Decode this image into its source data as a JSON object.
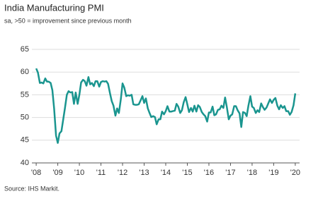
{
  "chart_data": {
    "type": "line",
    "title": "India Manufacturing PMI",
    "subtitle": "sa, >50 = improvement since previous month",
    "source": "Source: IHS Markit.",
    "x": [
      2008.0,
      2008.08,
      2008.17,
      2008.25,
      2008.33,
      2008.42,
      2008.5,
      2008.58,
      2008.67,
      2008.75,
      2008.83,
      2008.92,
      2009.0,
      2009.08,
      2009.17,
      2009.25,
      2009.33,
      2009.42,
      2009.5,
      2009.58,
      2009.67,
      2009.75,
      2009.83,
      2009.92,
      2010.0,
      2010.08,
      2010.17,
      2010.25,
      2010.33,
      2010.42,
      2010.5,
      2010.58,
      2010.67,
      2010.75,
      2010.83,
      2010.92,
      2011.0,
      2011.08,
      2011.17,
      2011.25,
      2011.33,
      2011.42,
      2011.5,
      2011.58,
      2011.67,
      2011.75,
      2011.83,
      2011.92,
      2012.0,
      2012.08,
      2012.17,
      2012.25,
      2012.33,
      2012.42,
      2012.5,
      2012.58,
      2012.67,
      2012.75,
      2012.83,
      2012.92,
      2013.0,
      2013.08,
      2013.17,
      2013.25,
      2013.33,
      2013.42,
      2013.5,
      2013.58,
      2013.67,
      2013.75,
      2013.83,
      2013.92,
      2014.0,
      2014.08,
      2014.17,
      2014.25,
      2014.33,
      2014.42,
      2014.5,
      2014.58,
      2014.67,
      2014.75,
      2014.83,
      2014.92,
      2015.0,
      2015.08,
      2015.17,
      2015.25,
      2015.33,
      2015.42,
      2015.5,
      2015.58,
      2015.67,
      2015.75,
      2015.83,
      2015.92,
      2016.0,
      2016.08,
      2016.17,
      2016.25,
      2016.33,
      2016.42,
      2016.5,
      2016.58,
      2016.67,
      2016.75,
      2016.83,
      2016.92,
      2017.0,
      2017.08,
      2017.17,
      2017.25,
      2017.33,
      2017.42,
      2017.5,
      2017.58,
      2017.67,
      2017.75,
      2017.83,
      2017.92,
      2018.0,
      2018.08,
      2018.17,
      2018.25,
      2018.33,
      2018.42,
      2018.5,
      2018.58,
      2018.67,
      2018.75,
      2018.83,
      2018.92,
      2019.0,
      2019.08,
      2019.17,
      2019.25,
      2019.33,
      2019.42,
      2019.5,
      2019.58,
      2019.67,
      2019.75,
      2019.83,
      2019.92,
      2020.0
    ],
    "series": [
      {
        "color": "#1a958f",
        "values": [
          60.8,
          59.9,
          57.6,
          57.7,
          57.5,
          58.6,
          57.9,
          57.9,
          57.6,
          56.0,
          52.0,
          46.0,
          44.4,
          46.5,
          47.0,
          49.5,
          52.0,
          55.0,
          55.8,
          55.5,
          55.6,
          53.0,
          55.5,
          53.0,
          55.0,
          57.7,
          58.3,
          58.0,
          57.0,
          58.9,
          57.3,
          57.6,
          56.9,
          58.0,
          58.0,
          56.8,
          57.8,
          58.0,
          57.9,
          58.0,
          57.4,
          55.3,
          53.6,
          52.6,
          50.4,
          52.0,
          51.0,
          54.0,
          57.5,
          56.6,
          54.7,
          54.9,
          54.8,
          55.0,
          52.9,
          52.8,
          52.8,
          52.9,
          53.7,
          54.7,
          53.2,
          54.2,
          52.0,
          51.0,
          50.1,
          50.3,
          50.1,
          48.5,
          49.6,
          49.6,
          51.3,
          50.7,
          51.4,
          52.5,
          51.3,
          51.3,
          51.4,
          51.5,
          53.0,
          52.4,
          51.0,
          51.6,
          53.3,
          54.5,
          52.9,
          51.2,
          52.1,
          51.3,
          52.6,
          51.3,
          52.7,
          52.3,
          51.2,
          50.7,
          50.3,
          49.1,
          51.1,
          51.1,
          52.4,
          50.5,
          50.7,
          51.7,
          51.8,
          52.6,
          52.1,
          54.4,
          52.3,
          49.6,
          50.4,
          50.7,
          52.5,
          52.5,
          51.6,
          50.9,
          47.9,
          51.2,
          51.0,
          50.3,
          52.6,
          54.7,
          52.4,
          52.1,
          51.0,
          51.6,
          51.2,
          53.1,
          52.3,
          51.7,
          52.2,
          53.1,
          54.0,
          53.2,
          53.9,
          54.3,
          52.6,
          51.8,
          52.7,
          52.1,
          52.5,
          51.4,
          51.4,
          50.6,
          51.2,
          52.7,
          55.3
        ]
      }
    ],
    "xlim": [
      2007.8,
      2020.2
    ],
    "xticks": [
      {
        "value": 2008,
        "label": "'08"
      },
      {
        "value": 2009,
        "label": "'09"
      },
      {
        "value": 2010,
        "label": "'10"
      },
      {
        "value": 2011,
        "label": "'11"
      },
      {
        "value": 2012,
        "label": "'12"
      },
      {
        "value": 2013,
        "label": "'13"
      },
      {
        "value": 2014,
        "label": "'14"
      },
      {
        "value": 2015,
        "label": "'15"
      },
      {
        "value": 2016,
        "label": "'16"
      },
      {
        "value": 2017,
        "label": "'17"
      },
      {
        "value": 2018,
        "label": "'18"
      },
      {
        "value": 2019,
        "label": "'19"
      },
      {
        "value": 2020,
        "label": "'20"
      }
    ],
    "ylim": [
      40,
      65
    ],
    "yticks": [
      40,
      45,
      50,
      55,
      60,
      65
    ],
    "grid": true
  }
}
